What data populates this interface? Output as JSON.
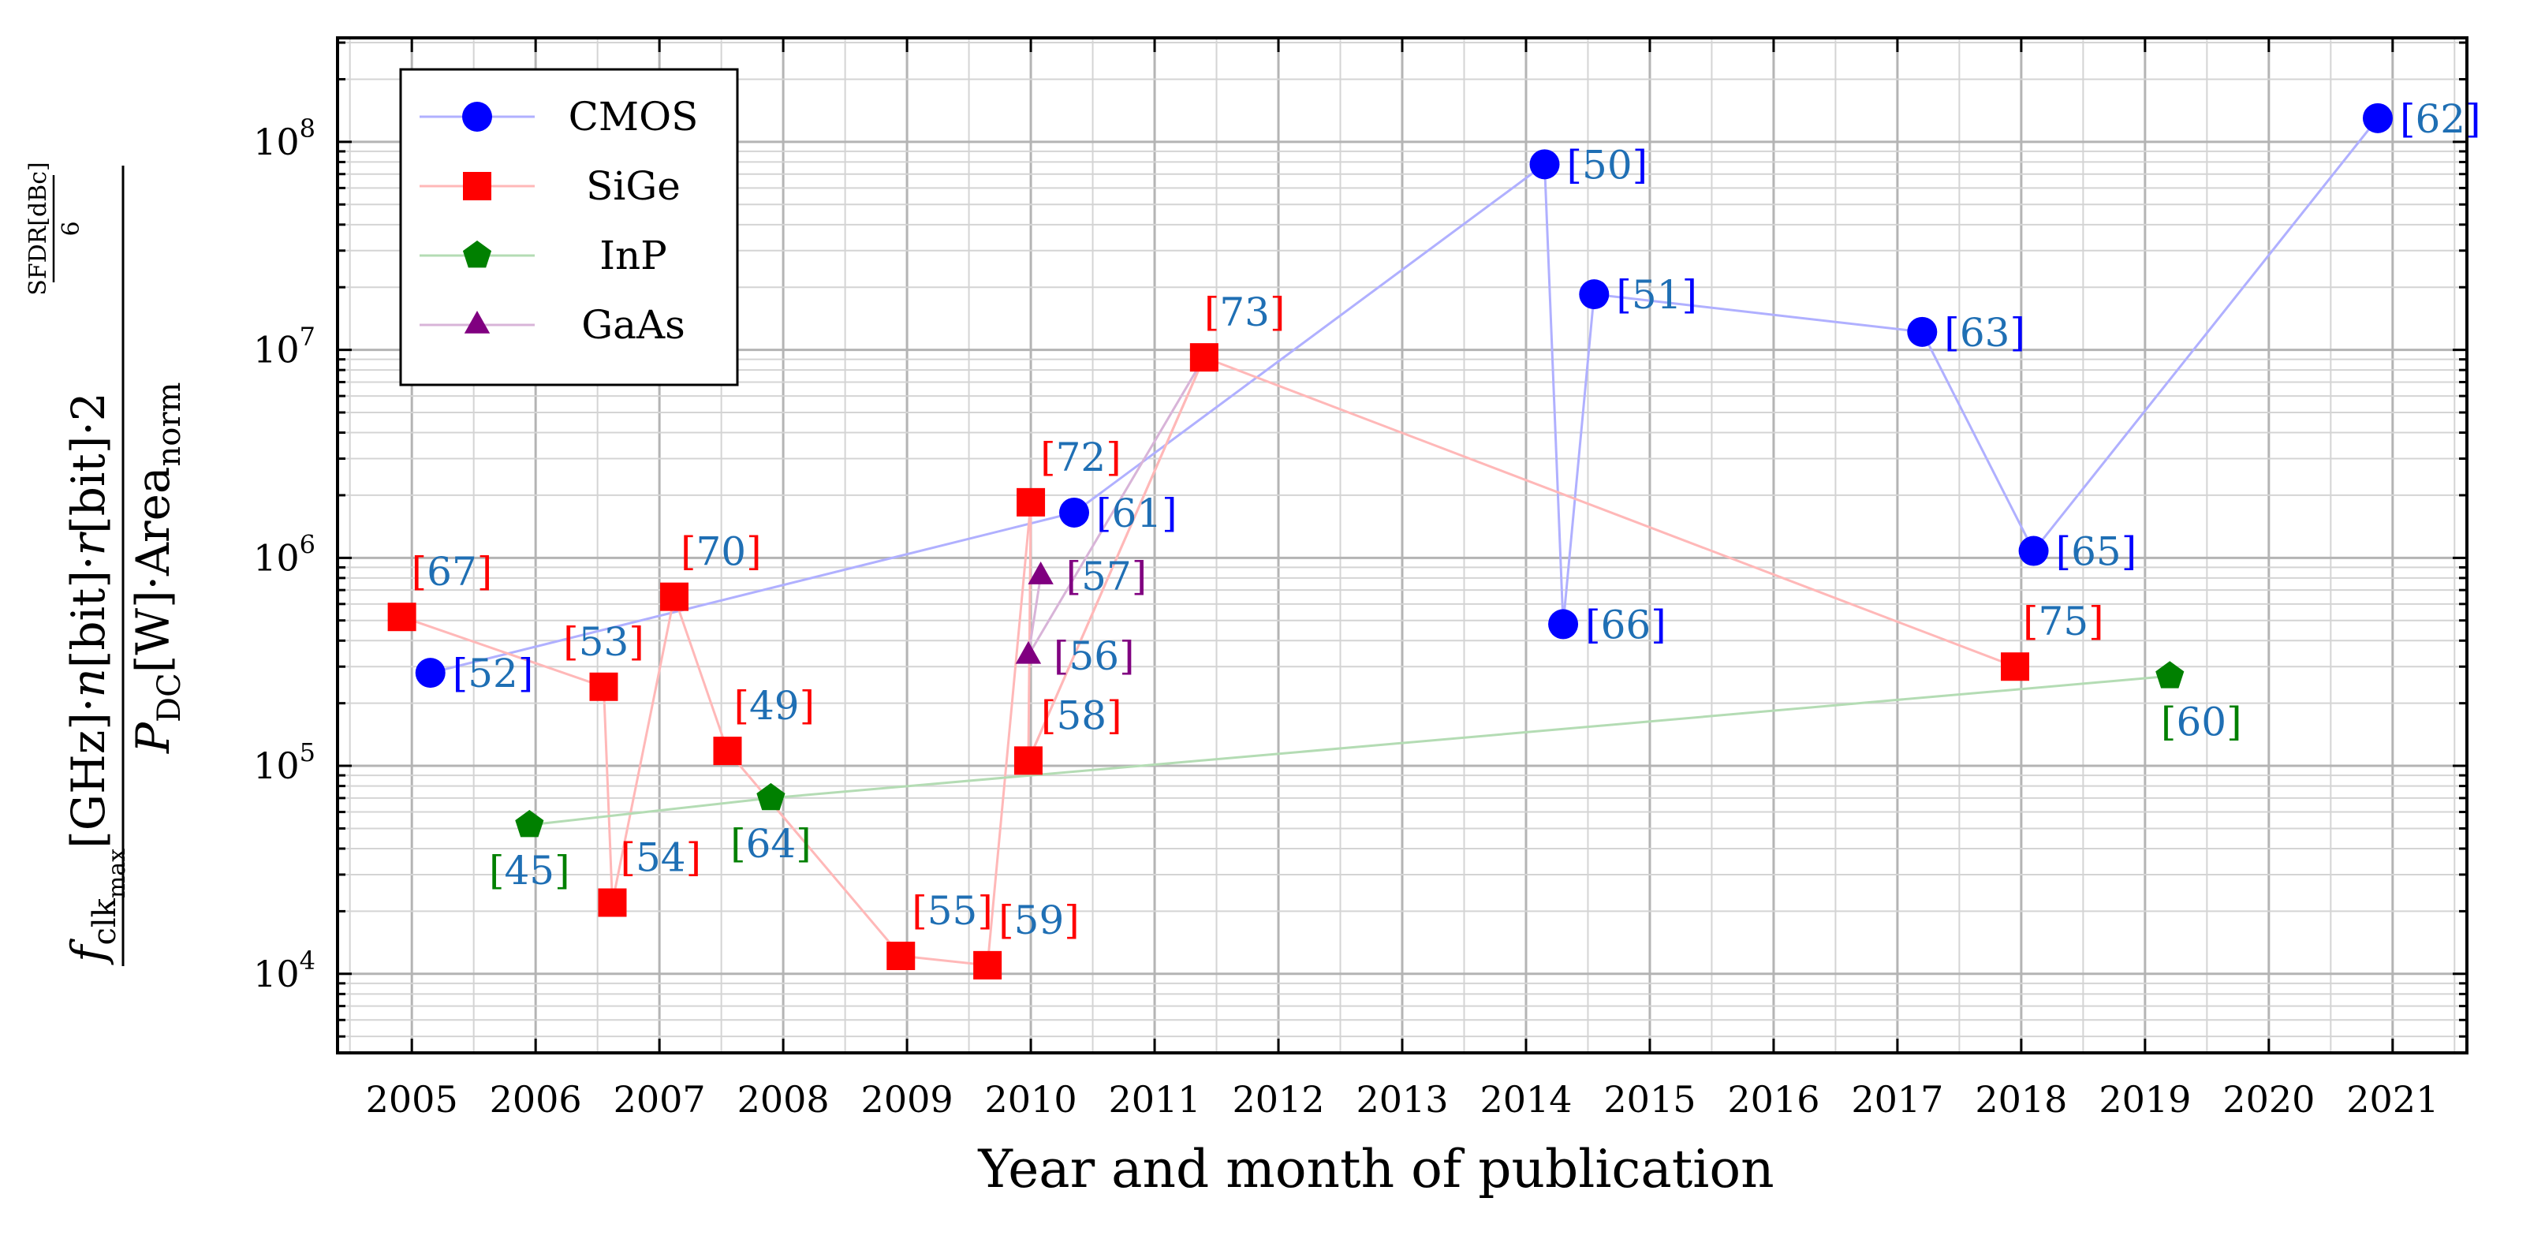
{
  "chart_data": {
    "type": "scatter",
    "xlabel": "Year and month of publication",
    "ylabel": {
      "f": "f",
      "f_sub": "clk",
      "f_subsub": "max",
      "num_rest": "[GHz]·",
      "n": "n",
      "n_rest": "[bit]·",
      "r": "r",
      "r_rest": "[bit]·2",
      "exp_num": "SFDR[dBc]",
      "exp_den": "6",
      "den_p": "P",
      "den_p_sub": "DC",
      "den_rest": "[W]·Area",
      "den_area_sub": "norm"
    },
    "x_tick_labels": [
      "2005",
      "2006",
      "2007",
      "2008",
      "2009",
      "2010",
      "2011",
      "2012",
      "2013",
      "2014",
      "2015",
      "2016",
      "2017",
      "2018",
      "2019",
      "2020",
      "2021"
    ],
    "y_tick_labels": [
      {
        "base": "10",
        "exp": "4",
        "value": 10000
      },
      {
        "base": "10",
        "exp": "5",
        "value": 100000
      },
      {
        "base": "10",
        "exp": "6",
        "value": 1000000
      },
      {
        "base": "10",
        "exp": "7",
        "value": 10000000
      },
      {
        "base": "10",
        "exp": "8",
        "value": 100000000
      }
    ],
    "xlim": [
      2004.4,
      2021.6
    ],
    "ylim_log10": [
      3.62,
      8.5
    ],
    "y_scale": "log",
    "grid": true,
    "legend_position": "top-left",
    "series": [
      {
        "name": "CMOS",
        "color": "#0000ff",
        "line_color": "#b0b0ff",
        "marker": "circle",
        "points": [
          {
            "x": 2005.15,
            "y": 280000,
            "ref": "[52]"
          },
          {
            "x": 2010.35,
            "y": 1650000,
            "ref": "[61]"
          },
          {
            "x": 2014.15,
            "y": 78000000,
            "ref": "[50]"
          },
          {
            "x": 2014.3,
            "y": 480000,
            "ref": "[66]"
          },
          {
            "x": 2014.55,
            "y": 18500000,
            "ref": "[51]"
          },
          {
            "x": 2017.2,
            "y": 12200000,
            "ref": "[63]"
          },
          {
            "x": 2018.1,
            "y": 1080000,
            "ref": "[65]"
          },
          {
            "x": 2020.88,
            "y": 130000000,
            "ref": "[62]"
          }
        ]
      },
      {
        "name": "SiGe",
        "color": "#ff0000",
        "line_color": "#ffb8b8",
        "marker": "square",
        "points": [
          {
            "x": 2004.92,
            "y": 520000,
            "ref": "[67]"
          },
          {
            "x": 2006.55,
            "y": 240000,
            "ref": "[53]"
          },
          {
            "x": 2006.62,
            "y": 22000,
            "ref": "[54]"
          },
          {
            "x": 2007.12,
            "y": 650000,
            "ref": "[70]"
          },
          {
            "x": 2007.55,
            "y": 118000,
            "ref": "[49]"
          },
          {
            "x": 2008.95,
            "y": 12200,
            "ref": "[55]"
          },
          {
            "x": 2009.65,
            "y": 11000,
            "ref": "[59]"
          },
          {
            "x": 2009.98,
            "y": 106000,
            "ref": "[58]"
          },
          {
            "x": 2010.0,
            "y": 1850000,
            "ref": "[72]"
          },
          {
            "x": 2011.4,
            "y": 9200000,
            "ref": "[73]"
          },
          {
            "x": 2017.95,
            "y": 300000,
            "ref": "[75]"
          }
        ]
      },
      {
        "name": "InP",
        "color": "#008000",
        "line_color": "#b4dcb4",
        "marker": "pentagon",
        "points": [
          {
            "x": 2005.95,
            "y": 52000,
            "ref": "[45]"
          },
          {
            "x": 2007.9,
            "y": 70000,
            "ref": "[64]"
          },
          {
            "x": 2019.2,
            "y": 270000,
            "ref": "[60]"
          }
        ]
      },
      {
        "name": "GaAs",
        "color": "#800080",
        "line_color": "#d8b4d8",
        "marker": "triangle",
        "points": [
          {
            "x": 2009.98,
            "y": 340000,
            "ref": "[56]"
          },
          {
            "x": 2010.08,
            "y": 820000,
            "ref": "[57]"
          }
        ]
      }
    ],
    "sige_path_order": [
      "[67]",
      "[53]",
      "[54]",
      "[70]",
      "[49]",
      "[55]",
      "[59]",
      "[72]",
      "[58]",
      "[73]",
      "[75]"
    ],
    "cmos_path_order": [
      "[52]",
      "[61]",
      "[50]",
      "[66]",
      "[51]",
      "[63]",
      "[65]",
      "[62]"
    ],
    "gaas_path_order": [
      "[57]",
      "[56]"
    ],
    "inp_path_order": [
      "[45]",
      "[64]",
      "[60]"
    ],
    "extra_segments": [
      {
        "series": "SiGe",
        "from": "[58]",
        "to": "[73]"
      },
      {
        "series": "GaAs",
        "from": "[56]",
        "to": "[73]"
      }
    ],
    "label_colors": {
      "bracket_cmos": "#0000ff",
      "bracket_sige": "#ff0000",
      "bracket_inp": "#008000",
      "bracket_gaas": "#800080",
      "number": "#1f6fb4"
    }
  }
}
